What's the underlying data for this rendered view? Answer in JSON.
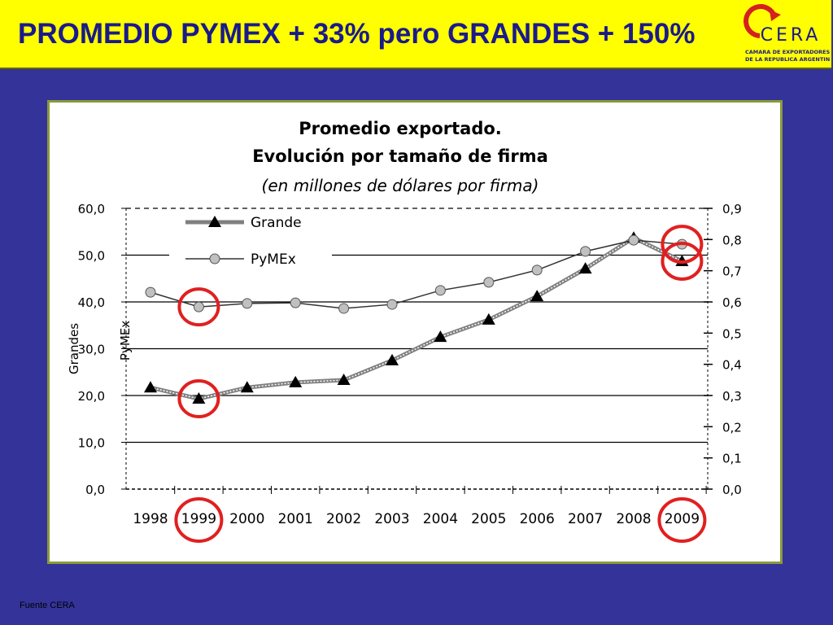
{
  "header": {
    "title": "PROMEDIO PYMEX + 33% pero GRANDES + 150%",
    "logo": {
      "name": "CERA",
      "subtitle_lines": [
        "CAMARA DE EXPORTADORES",
        "DE LA REPUBLICA ARGENTINA"
      ]
    }
  },
  "chart_data": {
    "type": "line",
    "title_lines": [
      "Promedio exportado.",
      "Evolución por tamaño de firma"
    ],
    "subtitle": "(en millones de dólares por firma)",
    "ylabel": "Grandes",
    "y2label": "PyMEx",
    "categories": [
      "1998",
      "1999",
      "2000",
      "2001",
      "2002",
      "2003",
      "2004",
      "2005",
      "2006",
      "2007",
      "2008",
      "2009"
    ],
    "series": [
      {
        "name": "Grande",
        "color": "#000000",
        "values": [
          21.7,
          19.3,
          21.7,
          22.8,
          23.3,
          27.5,
          32.5,
          36.2,
          41.2,
          47.1,
          53.7,
          48.7
        ]
      },
      {
        "name": "PyMEx",
        "color": "#c0c0c0",
        "axis": "y2",
        "values": [
          0.631,
          0.584,
          0.595,
          0.597,
          0.579,
          0.592,
          0.637,
          0.663,
          0.702,
          0.762,
          0.798,
          0.785
        ]
      }
    ],
    "ylim": [
      0,
      60
    ],
    "yticks": [
      {
        "value": 0,
        "label": "0,0"
      },
      {
        "value": 10,
        "label": "10,0"
      },
      {
        "value": 20,
        "label": "20,0"
      },
      {
        "value": 30,
        "label": "30,0"
      },
      {
        "value": 40,
        "label": "40,0"
      },
      {
        "value": 50,
        "label": "50,0"
      },
      {
        "value": 60,
        "label": "60,0"
      }
    ],
    "y2lim": [
      0,
      0.9
    ],
    "y2ticks": [
      {
        "value": 0,
        "label": "0,0"
      },
      {
        "value": 0.1,
        "label": "0,1"
      },
      {
        "value": 0.2,
        "label": "0,2"
      },
      {
        "value": 0.3,
        "label": "0,3"
      },
      {
        "value": 0.4,
        "label": "0,4"
      },
      {
        "value": 0.5,
        "label": "0,5"
      },
      {
        "value": 0.6,
        "label": "0,6"
      },
      {
        "value": 0.7,
        "label": "0,7"
      },
      {
        "value": 0.8,
        "label": "0,8"
      },
      {
        "value": 0.9,
        "label": "0,9"
      }
    ],
    "grid": true
  },
  "source": "Fuente CERA"
}
